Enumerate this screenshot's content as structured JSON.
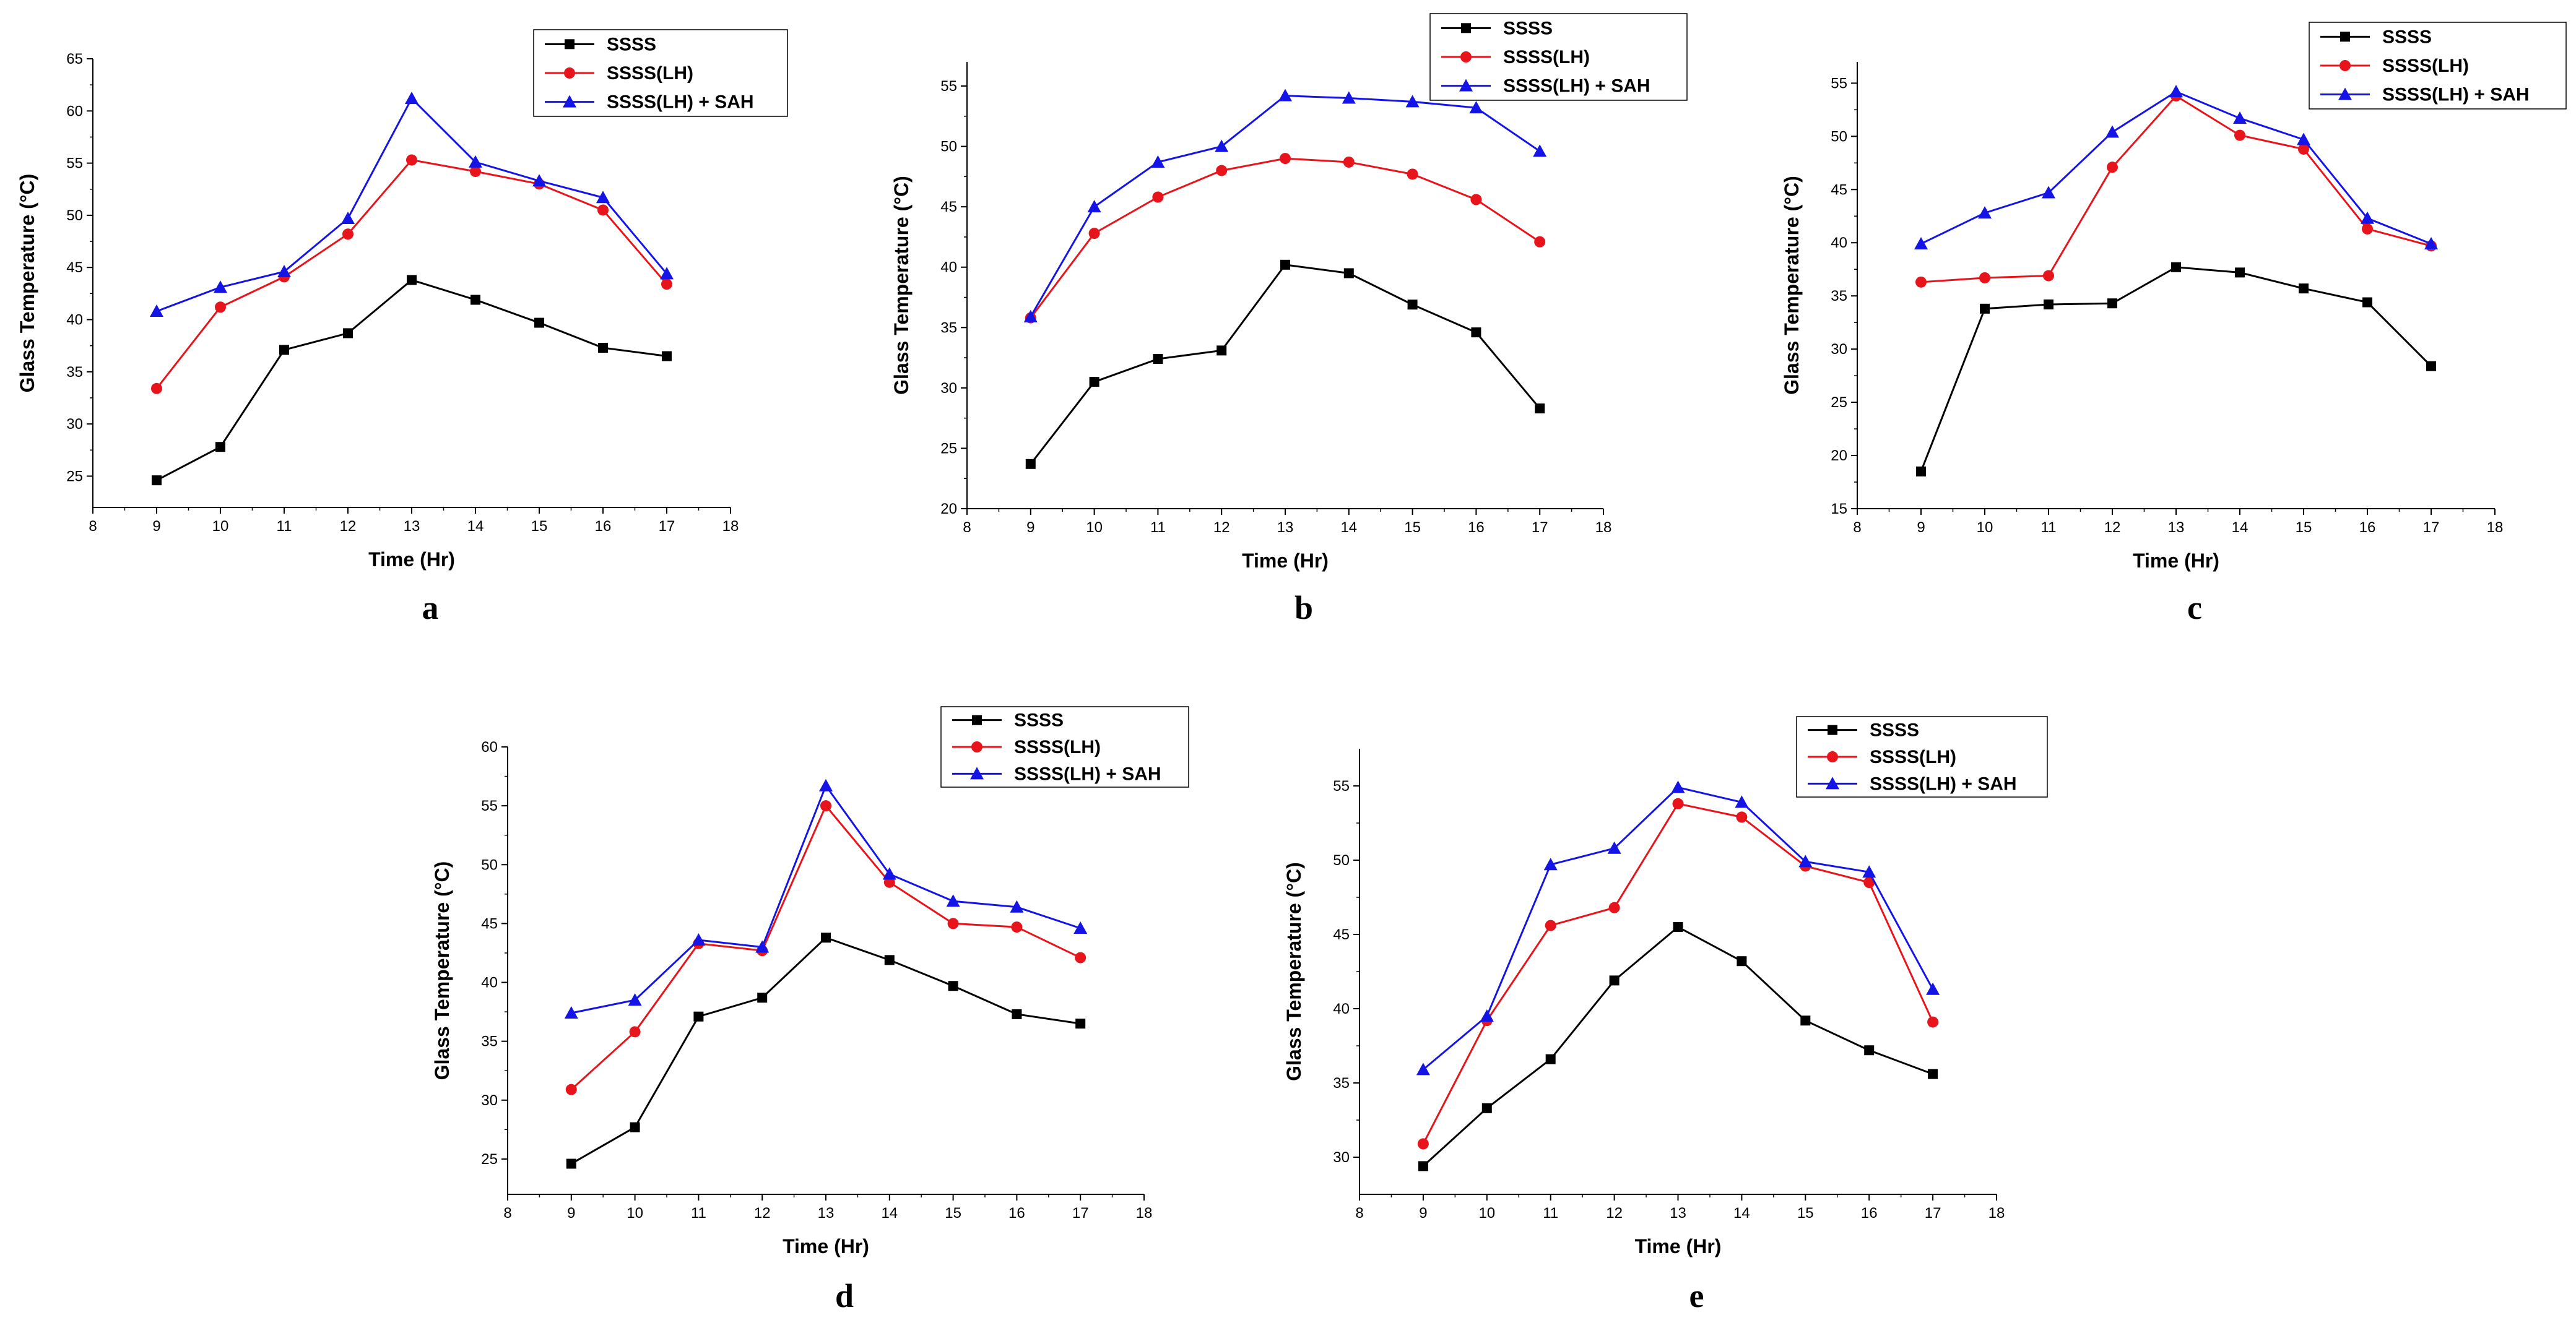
{
  "figure": {
    "series_styles": [
      {
        "name": "SSSS",
        "color": "#000000",
        "marker": "square"
      },
      {
        "name": "SSSS(LH)",
        "color": "#e8141b",
        "marker": "circle"
      },
      {
        "name": "SSSS(LH) + SAH",
        "color": "#1414e6",
        "marker": "triangle"
      }
    ]
  },
  "chart_data": [
    {
      "panel": "a",
      "type": "line",
      "xlabel": "Time (Hr)",
      "ylabel": "Glass Temperature (°C)",
      "xlim": [
        8,
        18
      ],
      "ylim": [
        22,
        65
      ],
      "xticks": [
        8,
        9,
        10,
        11,
        12,
        13,
        14,
        15,
        16,
        17,
        18
      ],
      "yticks": [
        25,
        30,
        35,
        40,
        45,
        50,
        55,
        60,
        65
      ],
      "legend_position": "top-right",
      "x": [
        9,
        10,
        11,
        12,
        13,
        14,
        15,
        16,
        17
      ],
      "series": [
        {
          "name": "SSSS",
          "values": [
            24.6,
            27.8,
            37.1,
            38.7,
            43.8,
            41.9,
            39.7,
            37.3,
            36.5
          ]
        },
        {
          "name": "SSSS(LH)",
          "values": [
            33.4,
            41.2,
            44.1,
            48.2,
            55.3,
            54.2,
            53.0,
            50.5,
            43.4
          ]
        },
        {
          "name": "SSSS(LH) + SAH",
          "values": [
            40.8,
            43.1,
            44.6,
            49.7,
            61.2,
            55.1,
            53.3,
            51.7,
            44.4
          ]
        }
      ]
    },
    {
      "panel": "b",
      "type": "line",
      "xlabel": "Time (Hr)",
      "ylabel": "Glass Temperature (°C)",
      "xlim": [
        8,
        18
      ],
      "ylim": [
        20,
        57
      ],
      "xticks": [
        8,
        9,
        10,
        11,
        12,
        13,
        14,
        15,
        16,
        17,
        18
      ],
      "yticks": [
        20,
        25,
        30,
        35,
        40,
        45,
        50,
        55
      ],
      "legend_position": "top-right",
      "x": [
        9,
        10,
        11,
        12,
        13,
        14,
        15,
        16,
        17
      ],
      "series": [
        {
          "name": "SSSS",
          "values": [
            23.7,
            30.5,
            32.4,
            33.1,
            40.2,
            39.5,
            36.9,
            34.6,
            28.3
          ]
        },
        {
          "name": "SSSS(LH)",
          "values": [
            35.8,
            42.8,
            45.8,
            48.0,
            49.0,
            48.7,
            47.7,
            45.6,
            42.1
          ]
        },
        {
          "name": "SSSS(LH) + SAH",
          "values": [
            35.9,
            45.0,
            48.7,
            50.0,
            54.2,
            54.0,
            53.7,
            53.2,
            49.6
          ]
        }
      ]
    },
    {
      "panel": "c",
      "type": "line",
      "xlabel": "Time (Hr)",
      "ylabel": "Glass Temperature (°C)",
      "xlim": [
        8,
        18
      ],
      "ylim": [
        15,
        57
      ],
      "xticks": [
        8,
        9,
        10,
        11,
        12,
        13,
        14,
        15,
        16,
        17,
        18
      ],
      "yticks": [
        15,
        20,
        25,
        30,
        35,
        40,
        45,
        50,
        55
      ],
      "legend_position": "top-right",
      "x": [
        9,
        10,
        11,
        12,
        13,
        14,
        15,
        16,
        17
      ],
      "series": [
        {
          "name": "SSSS",
          "values": [
            18.5,
            33.8,
            34.2,
            34.3,
            37.7,
            37.2,
            35.7,
            34.4,
            28.4
          ]
        },
        {
          "name": "SSSS(LH)",
          "values": [
            36.3,
            36.7,
            36.9,
            47.1,
            53.8,
            50.1,
            48.8,
            41.3,
            39.7
          ]
        },
        {
          "name": "SSSS(LH) + SAH",
          "values": [
            39.9,
            42.8,
            44.7,
            50.4,
            54.2,
            51.7,
            49.7,
            42.3,
            39.9
          ]
        }
      ]
    },
    {
      "panel": "d",
      "type": "line",
      "xlabel": "Time (Hr)",
      "ylabel": "Glass Temperature (°C)",
      "xlim": [
        8,
        18
      ],
      "ylim": [
        22,
        60
      ],
      "xticks": [
        8,
        9,
        10,
        11,
        12,
        13,
        14,
        15,
        16,
        17,
        18
      ],
      "yticks": [
        25,
        30,
        35,
        40,
        45,
        50,
        55,
        60
      ],
      "legend_position": "top-right",
      "x": [
        9,
        10,
        11,
        12,
        13,
        14,
        15,
        16,
        17
      ],
      "series": [
        {
          "name": "SSSS",
          "values": [
            24.6,
            27.7,
            37.1,
            38.7,
            43.8,
            41.9,
            39.7,
            37.3,
            36.5
          ]
        },
        {
          "name": "SSSS(LH)",
          "values": [
            30.9,
            35.8,
            43.3,
            42.7,
            55.0,
            48.5,
            45.0,
            44.7,
            42.1
          ]
        },
        {
          "name": "SSSS(LH) + SAH",
          "values": [
            37.4,
            38.5,
            43.6,
            43.0,
            56.7,
            49.2,
            46.9,
            46.4,
            44.6
          ]
        }
      ]
    },
    {
      "panel": "e",
      "type": "line",
      "xlabel": "Time (Hr)",
      "ylabel": "Glass Temperature (°C)",
      "xlim": [
        8,
        18
      ],
      "ylim": [
        27.5,
        57.5
      ],
      "xticks": [
        8,
        9,
        10,
        11,
        12,
        13,
        14,
        15,
        16,
        17,
        18
      ],
      "yticks": [
        30,
        35,
        40,
        45,
        50,
        55
      ],
      "legend_position": "top-right",
      "x": [
        9,
        10,
        11,
        12,
        13,
        14,
        15,
        16,
        17
      ],
      "series": [
        {
          "name": "SSSS",
          "values": [
            29.4,
            33.3,
            36.6,
            41.9,
            45.5,
            43.2,
            39.2,
            37.2,
            35.6
          ]
        },
        {
          "name": "SSSS(LH)",
          "values": [
            30.9,
            39.2,
            45.6,
            46.8,
            53.8,
            52.9,
            49.6,
            48.5,
            39.1
          ]
        },
        {
          "name": "SSSS(LH) + SAH",
          "values": [
            35.9,
            39.5,
            49.7,
            50.8,
            54.9,
            53.9,
            49.9,
            49.2,
            41.3
          ]
        }
      ]
    }
  ]
}
